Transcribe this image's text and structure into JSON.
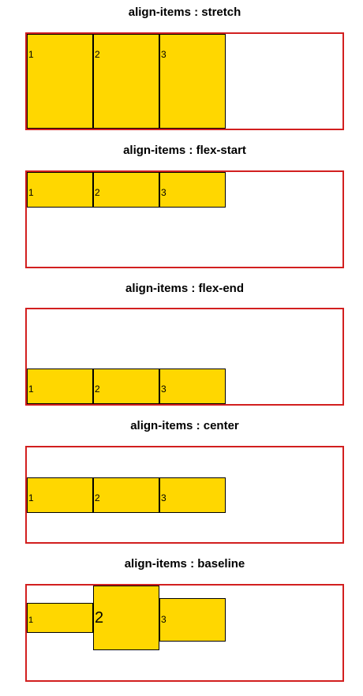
{
  "sections": [
    {
      "title": "align-items : stretch",
      "items": [
        "1",
        "2",
        "3"
      ]
    },
    {
      "title": "align-items : flex-start",
      "items": [
        "1",
        "2",
        "3"
      ]
    },
    {
      "title": "align-items : flex-end",
      "items": [
        "1",
        "2",
        "3"
      ]
    },
    {
      "title": "align-items : center",
      "items": [
        "1",
        "2",
        "3"
      ]
    },
    {
      "title": "align-items : baseline",
      "items": [
        "1",
        "2",
        "3"
      ]
    }
  ],
  "colors": {
    "container_border": "#d21f1f",
    "item_background": "#ffd700",
    "item_border": "#000000"
  }
}
